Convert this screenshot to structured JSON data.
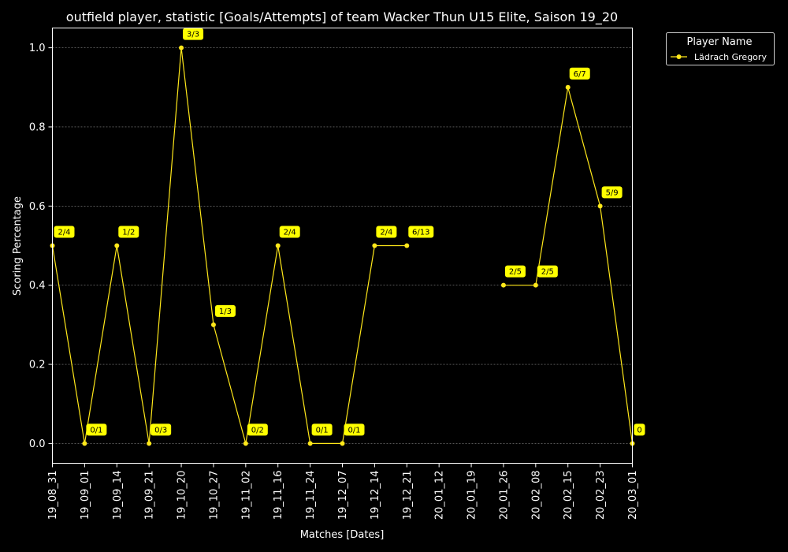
{
  "chart_data": {
    "type": "line",
    "title": "outfield player, statistic [Goals/Attempts] of team Wacker Thun U15 Elite, Saison 19_20",
    "xlabel": "Matches [Dates]",
    "ylabel": "Scoring Percentage",
    "ylim": [
      -0.05,
      1.05
    ],
    "yticks": [
      "0.0",
      "0.2",
      "0.4",
      "0.6",
      "0.8",
      "1.0"
    ],
    "grid": true,
    "line_color": "#ffe81a",
    "label_bg": "#ffff00",
    "legend": {
      "title": "Player Name",
      "placement": "outside-top-right"
    },
    "categories": [
      "19_08_31",
      "19_09_01",
      "19_09_14",
      "19_09_21",
      "19_10_20",
      "19_10_27",
      "19_11_02",
      "19_11_16",
      "19_11_24",
      "19_12_07",
      "19_12_14",
      "19_12_21",
      "20_01_12",
      "20_01_19",
      "20_01_26",
      "20_02_08",
      "20_02_15",
      "20_02_23",
      "20_03_01"
    ],
    "series": [
      {
        "name": "Lädrach Gregory",
        "values": [
          0.5,
          0.0,
          0.5,
          0.0,
          1.0,
          0.3,
          0.0,
          0.5,
          0.0,
          0.0,
          0.5,
          0.5,
          null,
          null,
          0.4,
          0.4,
          0.9,
          0.6,
          0.0
        ],
        "labels": [
          "2/4",
          "0/1",
          "1/2",
          "0/3",
          "3/3",
          "1/3",
          "0/2",
          "2/4",
          "0/1",
          "0/1",
          "2/4",
          "6/13",
          null,
          null,
          "2/5",
          "2/5",
          "6/7",
          "5/9",
          "0"
        ]
      }
    ]
  }
}
